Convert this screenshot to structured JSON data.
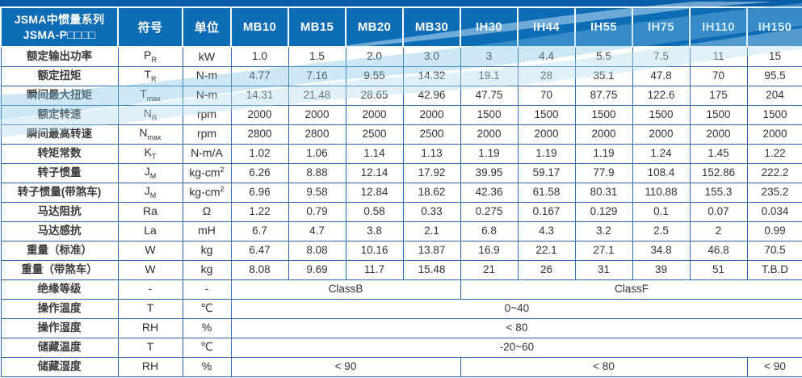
{
  "table": {
    "title_line1": "JSMA中惯量系列",
    "title_line2": "JSMA-P□□□□",
    "symbol_header": "符号",
    "unit_header": "单位",
    "models": [
      "MB10",
      "MB15",
      "MB20",
      "MB30",
      "IH30",
      "IH44",
      "IH55",
      "IH75",
      "IH110",
      "IH150"
    ],
    "rows": [
      {
        "label": "额定输出功率",
        "symbol": "P",
        "sub": "R",
        "unit": "kW",
        "unit_sup": "",
        "values": [
          "1.0",
          "1.5",
          "2.0",
          "3.0",
          "3",
          "4.4",
          "5.5",
          "7.5",
          "11",
          "15"
        ]
      },
      {
        "label": "额定扭矩",
        "symbol": "T",
        "sub": "R",
        "unit": "N-m",
        "unit_sup": "",
        "values": [
          "4.77",
          "7.16",
          "9.55",
          "14.32",
          "19.1",
          "28",
          "35.1",
          "47.8",
          "70",
          "95.5"
        ]
      },
      {
        "label": "瞬间最大扭矩",
        "symbol": "T",
        "sub": "max",
        "unit": "N-m",
        "unit_sup": "",
        "values": [
          "14.31",
          "21.48",
          "28.65",
          "42.96",
          "47.75",
          "70",
          "87.75",
          "122.6",
          "175",
          "204"
        ]
      },
      {
        "label": "额定转速",
        "symbol": "N",
        "sub": "R",
        "unit": "rpm",
        "unit_sup": "",
        "values": [
          "2000",
          "2000",
          "2000",
          "2000",
          "1500",
          "1500",
          "1500",
          "1500",
          "1500",
          "1500"
        ]
      },
      {
        "label": "瞬间最高转速",
        "symbol": "N",
        "sub": "max",
        "unit": "rpm",
        "unit_sup": "",
        "values": [
          "2800",
          "2800",
          "2500",
          "2500",
          "2000",
          "2000",
          "2000",
          "2000",
          "2000",
          "2000"
        ]
      },
      {
        "label": "转矩常数",
        "symbol": "K",
        "sub": "T",
        "unit": "N-m/A",
        "unit_sup": "",
        "values": [
          "1.02",
          "1.06",
          "1.14",
          "1.13",
          "1.19",
          "1.19",
          "1.19",
          "1.24",
          "1.45",
          "1.22"
        ]
      },
      {
        "label": "转子惯量",
        "symbol": "J",
        "sub": "M",
        "unit": "kg-cm",
        "unit_sup": "2",
        "values": [
          "6.26",
          "8.88",
          "12.14",
          "17.92",
          "39.95",
          "59.17",
          "77.9",
          "108.4",
          "152.86",
          "222.2"
        ]
      },
      {
        "label": "转子惯量(带煞车)",
        "symbol": "J",
        "sub": "M",
        "unit": "kg-cm",
        "unit_sup": "2",
        "values": [
          "6.96",
          "9.58",
          "12.84",
          "18.62",
          "42.36",
          "61.58",
          "80.31",
          "110.88",
          "155.3",
          "235.2"
        ]
      },
      {
        "label": "马达阻抗",
        "symbol": "Ra",
        "sub": "",
        "unit": "Ω",
        "unit_sup": "",
        "values": [
          "1.22",
          "0.79",
          "0.58",
          "0.33",
          "0.275",
          "0.167",
          "0.129",
          "0.1",
          "0.07",
          "0.034"
        ]
      },
      {
        "label": "马达感抗",
        "symbol": "La",
        "sub": "",
        "unit": "mH",
        "unit_sup": "",
        "values": [
          "6.7",
          "4.7",
          "3.8",
          "2.1",
          "6.8",
          "4.3",
          "3.2",
          "2.5",
          "2",
          "0.99"
        ]
      },
      {
        "label": "重量（标准）",
        "symbol": "W",
        "sub": "",
        "unit": "kg",
        "unit_sup": "",
        "values": [
          "6.47",
          "8.08",
          "10.16",
          "13.87",
          "16.9",
          "22.1",
          "27.1",
          "34.8",
          "46.8",
          "70.5"
        ]
      },
      {
        "label": "重量（带煞车）",
        "symbol": "W",
        "sub": "",
        "unit": "kg",
        "unit_sup": "",
        "values": [
          "8.08",
          "9.69",
          "11.7",
          "15.48",
          "21",
          "26",
          "31",
          "39",
          "51",
          "T.B.D"
        ]
      },
      {
        "label": "绝缘等级",
        "symbol": "-",
        "sub": "",
        "unit": "-",
        "unit_sup": "",
        "spans": [
          {
            "text": "ClassB",
            "cols": 4
          },
          {
            "text": "ClassF",
            "cols": 6
          }
        ]
      },
      {
        "label": "操作温度",
        "symbol": "T",
        "sub": "",
        "unit": "℃",
        "unit_sup": "",
        "spans": [
          {
            "text": "0~40",
            "cols": 10
          }
        ]
      },
      {
        "label": "操作湿度",
        "symbol": "RH",
        "sub": "",
        "unit": "%",
        "unit_sup": "",
        "spans": [
          {
            "text": "< 80",
            "cols": 10
          }
        ]
      },
      {
        "label": "储藏温度",
        "symbol": "T",
        "sub": "",
        "unit": "℃",
        "unit_sup": "",
        "spans": [
          {
            "text": "-20~60",
            "cols": 10
          }
        ]
      },
      {
        "label": "储藏湿度",
        "symbol": "RH",
        "sub": "",
        "unit": "%",
        "unit_sup": "",
        "spans": [
          {
            "text": "< 90",
            "cols": 4
          },
          {
            "text": "< 80",
            "cols": 5
          },
          {
            "text": "< 90",
            "cols": 1
          }
        ]
      }
    ]
  },
  "colors": {
    "header_blue": "#0d6cb6",
    "top_band_blue": "#0a5ea8",
    "cell_border_blue": "#2a6fb5",
    "wave_blue_strong": "#7bbfe6",
    "wave_blue_light": "#b5dcf2",
    "body_text": "#333333"
  }
}
